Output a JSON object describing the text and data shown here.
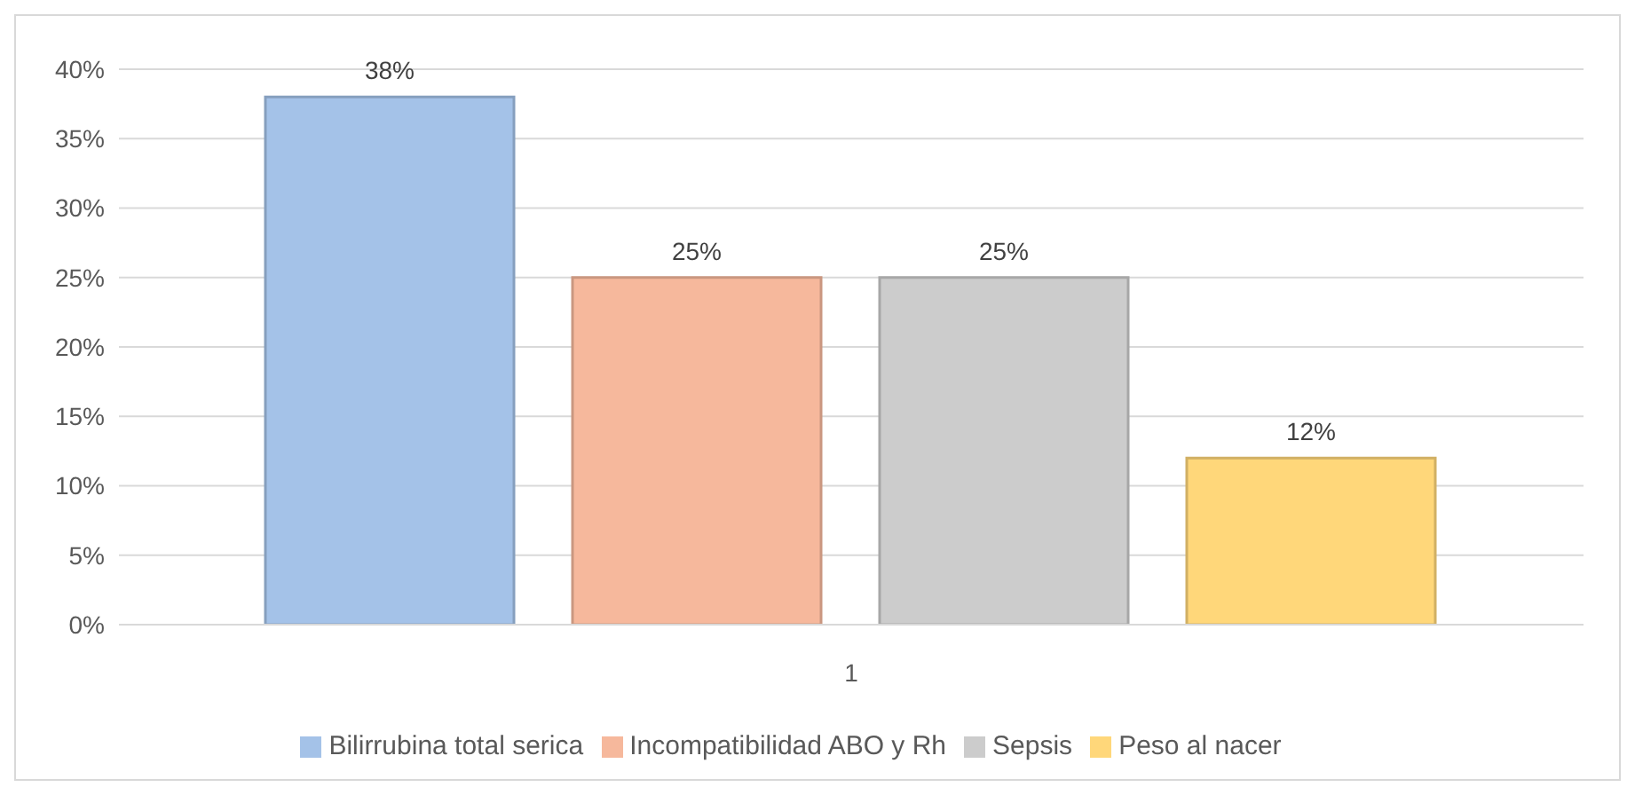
{
  "chart_data": {
    "type": "bar",
    "categories": [
      "1"
    ],
    "series": [
      {
        "name": "Bilirrubina total serica",
        "color": "#a4c2e8",
        "values": [
          38
        ],
        "value_labels": [
          "38%"
        ]
      },
      {
        "name": "Incompatibilidad ABO y Rh",
        "color": "#f6b89c",
        "values": [
          25
        ],
        "value_labels": [
          "25%"
        ]
      },
      {
        "name": "Sepsis",
        "color": "#cccccc",
        "values": [
          25
        ],
        "value_labels": [
          "25%"
        ]
      },
      {
        "name": "Peso al nacer",
        "color": "#ffd77a",
        "values": [
          12
        ],
        "value_labels": [
          "12%"
        ]
      }
    ],
    "ylim": [
      0,
      40
    ],
    "yticks": [
      {
        "value": 0,
        "label": "0%"
      },
      {
        "value": 5,
        "label": "5%"
      },
      {
        "value": 10,
        "label": "10%"
      },
      {
        "value": 15,
        "label": "15%"
      },
      {
        "value": 20,
        "label": "20%"
      },
      {
        "value": 25,
        "label": "25%"
      },
      {
        "value": 30,
        "label": "30%"
      },
      {
        "value": 35,
        "label": "35%"
      },
      {
        "value": 40,
        "label": "40%"
      }
    ],
    "grid": "y",
    "legend": "bottom"
  }
}
